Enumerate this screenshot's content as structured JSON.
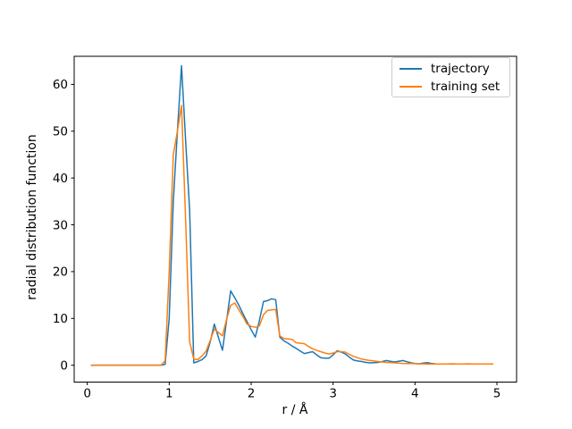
{
  "chart_data": {
    "type": "line",
    "title": "",
    "xlabel": "r / Å",
    "ylabel": "radial distribution function",
    "xlim": [
      -0.16,
      5.24
    ],
    "ylim": [
      -3.6,
      66
    ],
    "xticks": [
      0,
      1,
      2,
      3,
      4,
      5
    ],
    "yticks": [
      0,
      10,
      20,
      30,
      40,
      50,
      60
    ],
    "grid": false,
    "legend_position": "upper right",
    "x": [
      0.05,
      0.1,
      0.15,
      0.2,
      0.25,
      0.3,
      0.35,
      0.4,
      0.45,
      0.5,
      0.55,
      0.6,
      0.65,
      0.7,
      0.75,
      0.8,
      0.85,
      0.9,
      0.95,
      1.0,
      1.05,
      1.1,
      1.15,
      1.2,
      1.25,
      1.3,
      1.35,
      1.4,
      1.45,
      1.5,
      1.55,
      1.6,
      1.65,
      1.7,
      1.75,
      1.8,
      1.85,
      1.9,
      1.95,
      2.0,
      2.05,
      2.1,
      2.15,
      2.2,
      2.25,
      2.3,
      2.35,
      2.4,
      2.45,
      2.5,
      2.55,
      2.6,
      2.65,
      2.7,
      2.75,
      2.8,
      2.85,
      2.9,
      2.95,
      3.0,
      3.05,
      3.1,
      3.15,
      3.2,
      3.25,
      3.3,
      3.35,
      3.4,
      3.45,
      3.5,
      3.55,
      3.6,
      3.65,
      3.7,
      3.75,
      3.8,
      3.85,
      3.9,
      3.95,
      4.0,
      4.05,
      4.1,
      4.15,
      4.2,
      4.25,
      4.3,
      4.35,
      4.4,
      4.45,
      4.5,
      4.55,
      4.6,
      4.65,
      4.7,
      4.75,
      4.8,
      4.85,
      4.9,
      4.95
    ],
    "series": [
      {
        "name": "trajectory",
        "color": "#1f77b4",
        "values": [
          0,
          0,
          0,
          0,
          0,
          0,
          0,
          0,
          0,
          0,
          0,
          0,
          0,
          0,
          0,
          0,
          0,
          0,
          0.2,
          10,
          35,
          50,
          64,
          48,
          33,
          0.5,
          0.8,
          1.2,
          2.0,
          5.0,
          8.8,
          6.0,
          3.2,
          9.5,
          15.9,
          14.4,
          12.8,
          11.0,
          9.3,
          7.6,
          6.0,
          9.5,
          13.6,
          13.8,
          14.2,
          14.0,
          6.0,
          5.2,
          4.7,
          4.1,
          3.6,
          3.0,
          2.5,
          2.7,
          2.9,
          2.2,
          1.6,
          1.5,
          1.5,
          2.2,
          3.1,
          2.8,
          2.4,
          1.7,
          1.1,
          0.9,
          0.8,
          0.6,
          0.5,
          0.55,
          0.6,
          0.8,
          1.0,
          0.85,
          0.7,
          0.85,
          1.0,
          0.75,
          0.5,
          0.4,
          0.3,
          0.45,
          0.55,
          0.4,
          0.3,
          0.28,
          0.25,
          0.28,
          0.3,
          0.28,
          0.25,
          0.27,
          0.3,
          0.28,
          0.25,
          0.25,
          0.25,
          0.25,
          0.25
        ]
      },
      {
        "name": "training set",
        "color": "#ff7f0e",
        "values": [
          0,
          0,
          0,
          0,
          0,
          0,
          0,
          0,
          0,
          0,
          0,
          0,
          0,
          0,
          0,
          0,
          0,
          0,
          1.0,
          20,
          45,
          50,
          55.5,
          31,
          5.0,
          1.3,
          1.2,
          2.0,
          3.0,
          5.3,
          7.7,
          7.0,
          6.3,
          9.8,
          12.8,
          13.3,
          11.8,
          10.4,
          8.8,
          8.3,
          8.1,
          8.4,
          10.8,
          11.7,
          11.8,
          11.9,
          6.3,
          5.7,
          5.6,
          5.5,
          4.8,
          4.7,
          4.6,
          4.0,
          3.5,
          3.2,
          2.9,
          2.6,
          2.4,
          2.6,
          2.9,
          2.9,
          2.8,
          2.3,
          1.9,
          1.6,
          1.3,
          1.15,
          1.0,
          0.9,
          0.8,
          0.7,
          0.6,
          0.55,
          0.5,
          0.45,
          0.4,
          0.38,
          0.35,
          0.33,
          0.3,
          0.3,
          0.28,
          0.27,
          0.26,
          0.25,
          0.25,
          0.25,
          0.25,
          0.25,
          0.25,
          0.25,
          0.25,
          0.25,
          0.25,
          0.25,
          0.25,
          0.25,
          0.25
        ]
      }
    ]
  },
  "colors": {
    "axes": "#000000",
    "tick_text": "#000000",
    "legend_border": "#cccccc",
    "background": "#ffffff"
  }
}
